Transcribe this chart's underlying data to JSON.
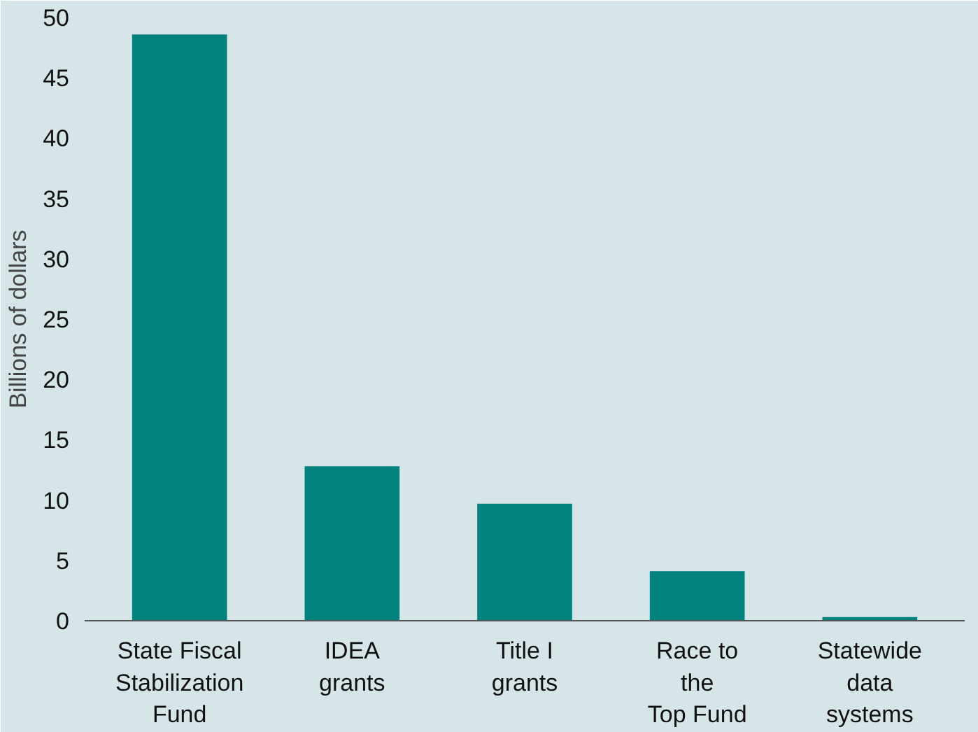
{
  "chart_data": {
    "type": "bar",
    "ylabel": "Billions of dollars",
    "categories": [
      "State Fiscal\nStabilization\nFund",
      "IDEA\ngrants",
      "Title I\ngrants",
      "Race to\nthe\nTop Fund",
      "Statewide\ndata\nsystems"
    ],
    "values": [
      48.6,
      12.8,
      9.7,
      4.1,
      0.3
    ],
    "color": "#00827f",
    "ylim": [
      0,
      50
    ],
    "yticks": [
      0,
      5,
      10,
      15,
      20,
      25,
      30,
      35,
      40,
      45,
      50
    ],
    "grid": false
  }
}
